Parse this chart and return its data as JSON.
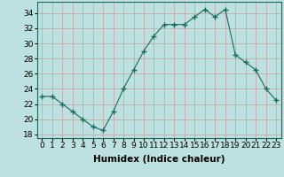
{
  "x": [
    0,
    1,
    2,
    3,
    4,
    5,
    6,
    7,
    8,
    9,
    10,
    11,
    12,
    13,
    14,
    15,
    16,
    17,
    18,
    19,
    20,
    21,
    22,
    23
  ],
  "y": [
    23,
    23,
    22,
    21,
    20,
    19,
    18.5,
    21,
    24,
    26.5,
    29,
    31,
    32.5,
    32.5,
    32.5,
    33.5,
    34.5,
    33.5,
    34.5,
    28.5,
    27.5,
    26.5,
    24,
    22.5
  ],
  "line_color": "#1a6b5a",
  "marker": "+",
  "marker_size": 4,
  "bg_color": "#bde0e0",
  "grid_color": "#c8a0a0",
  "xlabel": "Humidex (Indice chaleur)",
  "xlim": [
    -0.5,
    23.5
  ],
  "ylim": [
    17.5,
    35.5
  ],
  "yticks": [
    18,
    20,
    22,
    24,
    26,
    28,
    30,
    32,
    34
  ],
  "xtick_labels": [
    "0",
    "1",
    "2",
    "3",
    "4",
    "5",
    "6",
    "7",
    "8",
    "9",
    "10",
    "11",
    "12",
    "13",
    "14",
    "15",
    "16",
    "17",
    "18",
    "19",
    "20",
    "21",
    "22",
    "23"
  ],
  "tick_fontsize": 6.5,
  "xlabel_fontsize": 7.5
}
